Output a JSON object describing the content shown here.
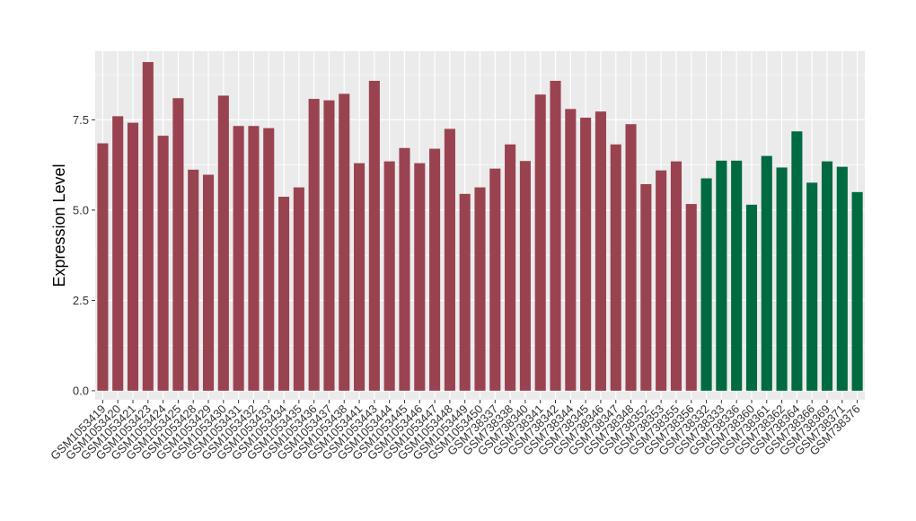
{
  "chart_data": {
    "type": "bar",
    "title": "",
    "xlabel": "",
    "ylabel": "Expression Level",
    "ylim": [
      -0.25,
      9.4
    ],
    "yticks": [
      0.0,
      2.5,
      5.0,
      7.5
    ],
    "ytick_labels": [
      "0.0",
      "2.5",
      "5.0",
      "7.5"
    ],
    "grid": true,
    "legend": "none",
    "colors": {
      "group1": "#9a4350",
      "group2": "#006a40",
      "panel": "#ebebeb",
      "grid": "#ffffff"
    },
    "categories": [
      "GSM1053419",
      "GSM1053420",
      "GSM1053421",
      "GSM1053423",
      "GSM1053424",
      "GSM1053425",
      "GSM1053428",
      "GSM1053429",
      "GSM1053430",
      "GSM1053431",
      "GSM1053432",
      "GSM1053433",
      "GSM1053434",
      "GSM1053435",
      "GSM1053436",
      "GSM1053437",
      "GSM1053438",
      "GSM1053441",
      "GSM1053443",
      "GSM1053444",
      "GSM1053445",
      "GSM1053446",
      "GSM1053447",
      "GSM1053448",
      "GSM1053449",
      "GSM1053450",
      "GSM738337",
      "GSM738338",
      "GSM738340",
      "GSM738341",
      "GSM738342",
      "GSM738344",
      "GSM738345",
      "GSM738346",
      "GSM738347",
      "GSM738348",
      "GSM738352",
      "GSM738353",
      "GSM738355",
      "GSM738356",
      "GSM738332",
      "GSM738333",
      "GSM738336",
      "GSM738360",
      "GSM738361",
      "GSM738362",
      "GSM738364",
      "GSM738366",
      "GSM738369",
      "GSM738371",
      "GSM738376"
    ],
    "values": [
      6.85,
      7.6,
      7.42,
      9.1,
      7.06,
      8.1,
      6.12,
      5.98,
      8.17,
      7.33,
      7.33,
      7.27,
      5.37,
      5.63,
      8.08,
      8.04,
      8.22,
      6.3,
      8.58,
      6.35,
      6.72,
      6.3,
      6.7,
      7.25,
      5.45,
      5.63,
      6.15,
      6.82,
      6.36,
      8.2,
      8.58,
      7.8,
      7.56,
      7.73,
      6.82,
      7.38,
      5.72,
      6.1,
      6.35,
      5.17,
      5.88,
      6.37,
      6.37,
      5.15,
      6.5,
      6.18,
      7.18,
      5.76,
      6.35,
      6.2,
      5.5
    ],
    "groups": [
      1,
      1,
      1,
      1,
      1,
      1,
      1,
      1,
      1,
      1,
      1,
      1,
      1,
      1,
      1,
      1,
      1,
      1,
      1,
      1,
      1,
      1,
      1,
      1,
      1,
      1,
      1,
      1,
      1,
      1,
      1,
      1,
      1,
      1,
      1,
      1,
      1,
      1,
      1,
      1,
      2,
      2,
      2,
      2,
      2,
      2,
      2,
      2,
      2,
      2,
      2
    ]
  }
}
